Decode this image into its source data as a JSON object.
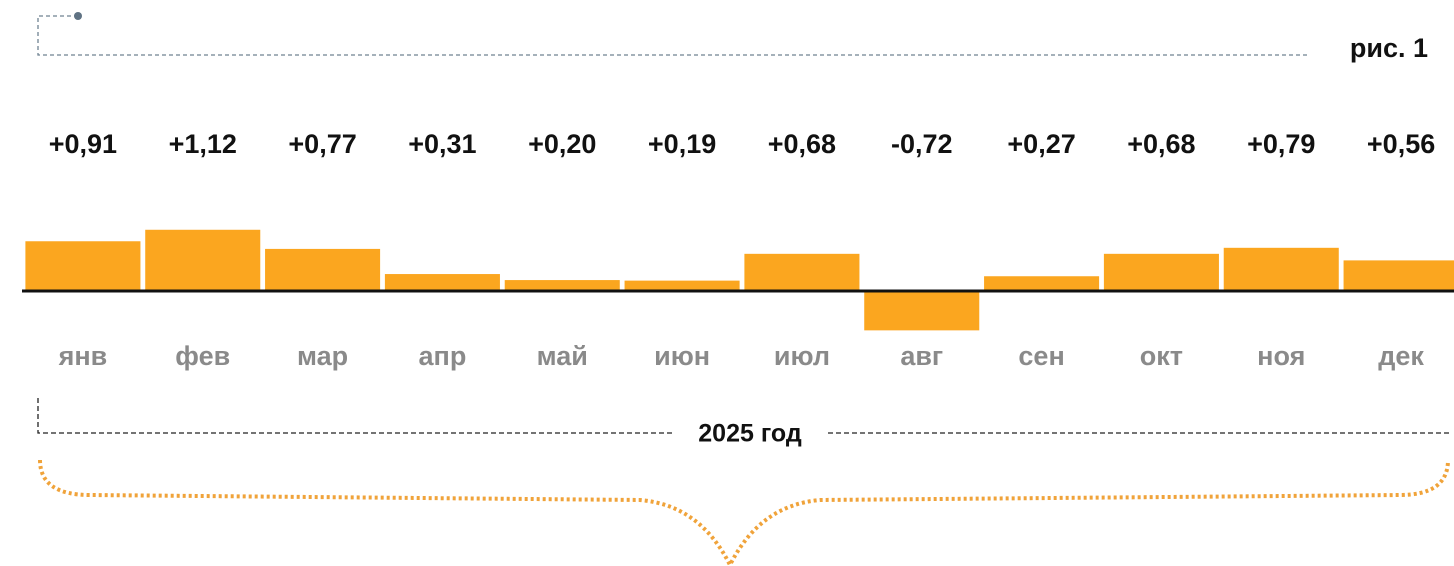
{
  "chart_data": {
    "type": "bar",
    "title": "рис. 1",
    "annotation": "2025 год",
    "categories": [
      "янв",
      "фев",
      "мар",
      "апр",
      "май",
      "июн",
      "июл",
      "авг",
      "сен",
      "окт",
      "ноя",
      "дек"
    ],
    "values": [
      0.91,
      1.12,
      0.77,
      0.31,
      0.2,
      0.19,
      0.68,
      -0.72,
      0.27,
      0.68,
      0.79,
      0.56
    ],
    "value_labels": [
      "+0,91",
      "+1,12",
      "+0,77",
      "+0,31",
      "+0,20",
      "+0,19",
      "+0,68",
      "-0,72",
      "+0,27",
      "+0,68",
      "+0,79",
      "+0,56"
    ],
    "color": "#fba61f",
    "ylim": [
      -1.5,
      1.5
    ]
  }
}
